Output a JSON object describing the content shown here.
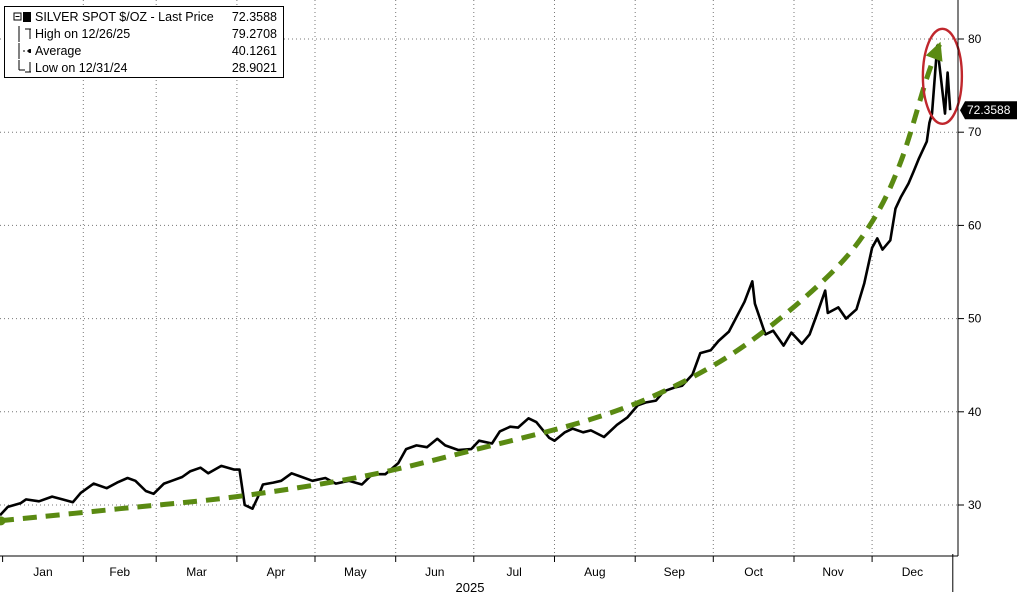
{
  "chart_data": {
    "type": "line",
    "title": "",
    "ylim": [
      24,
      84
    ],
    "yticks": [
      30,
      40,
      50,
      60,
      70,
      80
    ],
    "grid": true,
    "legend_placement": "top-left",
    "year_label": "2025",
    "month_labels": [
      "Jan",
      "Feb",
      "Mar",
      "Apr",
      "May",
      "Jun",
      "Jul",
      "Aug",
      "Sep",
      "Oct",
      "Nov",
      "Dec"
    ],
    "last_price_label": "72.3588",
    "legend": {
      "series_name": "SILVER SPOT $/OZ - Last Price",
      "series_value": "72.3588",
      "high_label": "High on 12/26/25",
      "high_value": "79.2708",
      "avg_label": "Average",
      "avg_value": "40.1261",
      "low_label": "Low on 12/31/24",
      "low_value": "28.9021"
    },
    "colors": {
      "price_line": "#000000",
      "trend_arrow": "#5a8a12",
      "highlight_ellipse": "#c0272d",
      "grid": "#777777"
    },
    "series": [
      {
        "name": "SILVER SPOT $/OZ - Last Price",
        "points": [
          [
            "2024-12-31",
            28.9
          ],
          [
            "2025-01-03",
            29.8
          ],
          [
            "2025-01-08",
            30.2
          ],
          [
            "2025-01-10",
            30.6
          ],
          [
            "2025-01-15",
            30.4
          ],
          [
            "2025-01-20",
            30.9
          ],
          [
            "2025-01-24",
            30.6
          ],
          [
            "2025-01-28",
            30.3
          ],
          [
            "2025-01-31",
            31.3
          ],
          [
            "2025-02-05",
            32.3
          ],
          [
            "2025-02-10",
            31.8
          ],
          [
            "2025-02-14",
            32.4
          ],
          [
            "2025-02-18",
            32.9
          ],
          [
            "2025-02-21",
            32.6
          ],
          [
            "2025-02-25",
            31.5
          ],
          [
            "2025-02-28",
            31.2
          ],
          [
            "2025-03-04",
            32.3
          ],
          [
            "2025-03-07",
            32.6
          ],
          [
            "2025-03-11",
            33.0
          ],
          [
            "2025-03-14",
            33.6
          ],
          [
            "2025-03-18",
            34.0
          ],
          [
            "2025-03-21",
            33.4
          ],
          [
            "2025-03-26",
            34.2
          ],
          [
            "2025-03-31",
            33.8
          ],
          [
            "2025-04-02",
            33.8
          ],
          [
            "2025-04-04",
            30.0
          ],
          [
            "2025-04-07",
            29.6
          ],
          [
            "2025-04-09",
            30.8
          ],
          [
            "2025-04-11",
            32.2
          ],
          [
            "2025-04-15",
            32.4
          ],
          [
            "2025-04-18",
            32.6
          ],
          [
            "2025-04-22",
            33.4
          ],
          [
            "2025-04-25",
            33.1
          ],
          [
            "2025-04-30",
            32.6
          ],
          [
            "2025-05-05",
            32.9
          ],
          [
            "2025-05-09",
            32.3
          ],
          [
            "2025-05-14",
            32.6
          ],
          [
            "2025-05-19",
            32.2
          ],
          [
            "2025-05-23",
            33.3
          ],
          [
            "2025-05-28",
            33.3
          ],
          [
            "2025-06-02",
            34.5
          ],
          [
            "2025-06-05",
            36.0
          ],
          [
            "2025-06-09",
            36.4
          ],
          [
            "2025-06-13",
            36.2
          ],
          [
            "2025-06-17",
            37.1
          ],
          [
            "2025-06-20",
            36.4
          ],
          [
            "2025-06-25",
            35.9
          ],
          [
            "2025-06-30",
            36.0
          ],
          [
            "2025-07-03",
            36.9
          ],
          [
            "2025-07-08",
            36.6
          ],
          [
            "2025-07-11",
            37.9
          ],
          [
            "2025-07-15",
            38.4
          ],
          [
            "2025-07-18",
            38.3
          ],
          [
            "2025-07-22",
            39.3
          ],
          [
            "2025-07-25",
            38.9
          ],
          [
            "2025-07-30",
            37.2
          ],
          [
            "2025-08-01",
            36.9
          ],
          [
            "2025-08-05",
            37.8
          ],
          [
            "2025-08-08",
            38.2
          ],
          [
            "2025-08-12",
            37.8
          ],
          [
            "2025-08-15",
            38.0
          ],
          [
            "2025-08-20",
            37.3
          ],
          [
            "2025-08-25",
            38.6
          ],
          [
            "2025-08-29",
            39.4
          ],
          [
            "2025-09-02",
            40.7
          ],
          [
            "2025-09-05",
            41.0
          ],
          [
            "2025-09-09",
            41.2
          ],
          [
            "2025-09-12",
            42.2
          ],
          [
            "2025-09-16",
            42.6
          ],
          [
            "2025-09-19",
            42.8
          ],
          [
            "2025-09-23",
            44.0
          ],
          [
            "2025-09-26",
            46.3
          ],
          [
            "2025-09-30",
            46.6
          ],
          [
            "2025-10-03",
            47.6
          ],
          [
            "2025-10-07",
            48.6
          ],
          [
            "2025-10-10",
            50.2
          ],
          [
            "2025-10-13",
            51.8
          ],
          [
            "2025-10-16",
            54.0
          ],
          [
            "2025-10-17",
            51.6
          ],
          [
            "2025-10-21",
            48.3
          ],
          [
            "2025-10-24",
            48.7
          ],
          [
            "2025-10-28",
            47.1
          ],
          [
            "2025-10-31",
            48.5
          ],
          [
            "2025-11-04",
            47.3
          ],
          [
            "2025-11-07",
            48.3
          ],
          [
            "2025-11-10",
            50.6
          ],
          [
            "2025-11-13",
            53.0
          ],
          [
            "2025-11-14",
            50.6
          ],
          [
            "2025-11-18",
            51.2
          ],
          [
            "2025-11-21",
            50.0
          ],
          [
            "2025-11-25",
            51.0
          ],
          [
            "2025-11-28",
            53.8
          ],
          [
            "2025-12-01",
            57.6
          ],
          [
            "2025-12-03",
            58.6
          ],
          [
            "2025-12-05",
            57.4
          ],
          [
            "2025-12-08",
            58.4
          ],
          [
            "2025-12-10",
            61.8
          ],
          [
            "2025-12-12",
            63.0
          ],
          [
            "2025-12-15",
            64.5
          ],
          [
            "2025-12-17",
            65.8
          ],
          [
            "2025-12-19",
            67.2
          ],
          [
            "2025-12-22",
            69.0
          ],
          [
            "2025-12-23",
            71.0
          ],
          [
            "2025-12-24",
            72.0
          ],
          [
            "2025-12-26",
            79.27
          ],
          [
            "2025-12-29",
            72.0
          ],
          [
            "2025-12-30",
            76.4
          ],
          [
            "2025-12-31",
            72.36
          ]
        ]
      }
    ],
    "annotations": {
      "trend_arrow_points": [
        [
          "2024-12-31",
          28.3
        ],
        [
          "2025-02-15",
          29.6
        ],
        [
          "2025-04-01",
          30.9
        ],
        [
          "2025-05-20",
          33.1
        ],
        [
          "2025-07-01",
          35.9
        ],
        [
          "2025-08-15",
          39.2
        ],
        [
          "2025-09-15",
          42.6
        ],
        [
          "2025-10-15",
          47.5
        ],
        [
          "2025-11-15",
          54.8
        ],
        [
          "2025-12-01",
          60.4
        ],
        [
          "2025-12-12",
          66.8
        ],
        [
          "2025-12-22",
          75.8
        ],
        [
          "2025-12-27",
          79.5
        ]
      ],
      "highlight_ellipse": {
        "center": [
          "2025-12-28",
          76.0
        ],
        "rx_days": 7.5,
        "ry": 10.2
      }
    }
  }
}
